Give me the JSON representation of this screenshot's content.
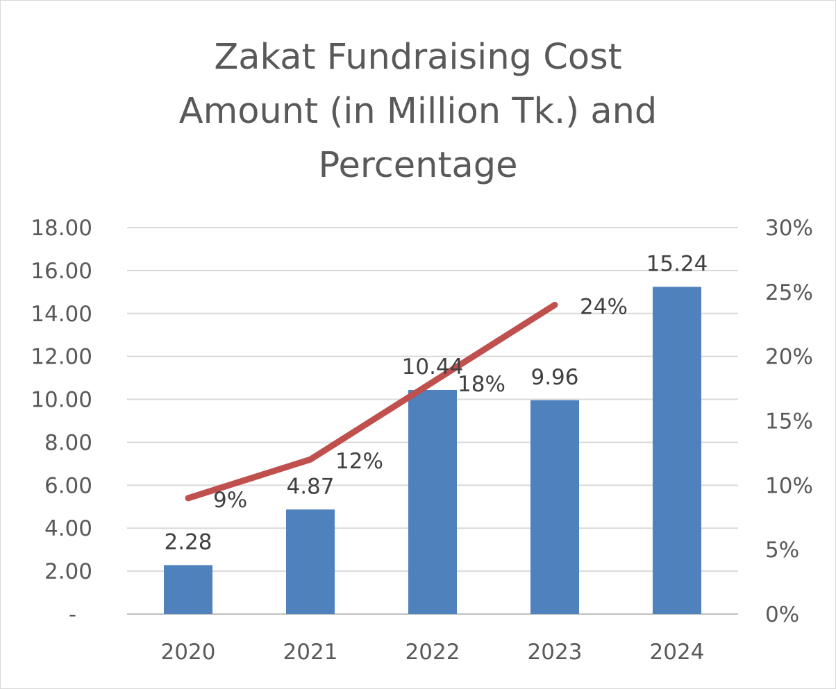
{
  "chart_data": {
    "type": "bar",
    "title_lines": [
      "Zakat Fundraising Cost",
      "Amount (in Million Tk.) and",
      "Percentage"
    ],
    "categories": [
      "2020",
      "2021",
      "2022",
      "2023",
      "2024"
    ],
    "series": [
      {
        "type": "bar",
        "values": [
          2.28,
          4.87,
          10.44,
          9.96,
          15.24
        ],
        "labels": [
          "2.28",
          "4.87",
          "10.44",
          "9.96",
          "15.24"
        ],
        "color": "#4f81bd",
        "axis": "left"
      },
      {
        "type": "line",
        "values": [
          0.09,
          0.12,
          0.18,
          0.24,
          null
        ],
        "labels": [
          "9%",
          "12%",
          "18%",
          "24%",
          null
        ],
        "color": "#c0504d",
        "axis": "right"
      }
    ],
    "y_left": {
      "ylim": [
        0,
        18
      ],
      "ticks": [
        0,
        2,
        4,
        6,
        8,
        10,
        12,
        14,
        16,
        18
      ],
      "tick_labels": [
        "-",
        "2.00",
        "4.00",
        "6.00",
        "8.00",
        "10.00",
        "12.00",
        "14.00",
        "16.00",
        "18.00"
      ]
    },
    "y_right": {
      "ylim": [
        0,
        0.3
      ],
      "ticks": [
        0,
        0.05,
        0.1,
        0.15,
        0.2,
        0.25,
        0.3
      ],
      "tick_labels": [
        "0%",
        "5%",
        "10%",
        "15%",
        "20%",
        "25%",
        "30%"
      ]
    },
    "grid": true,
    "legend": "none"
  }
}
